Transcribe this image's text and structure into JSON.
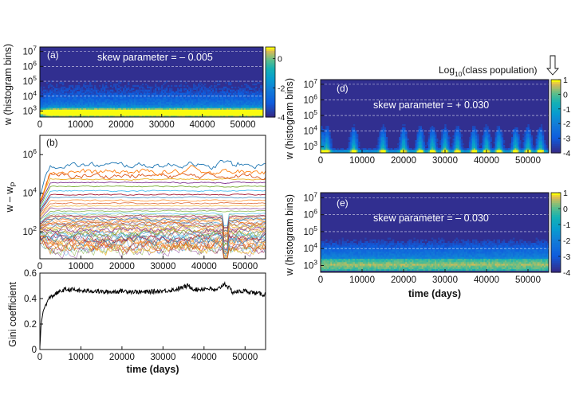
{
  "chart_data": [
    {
      "id": "a",
      "type": "heatmap",
      "panel_label": "(a)",
      "annotation": "skew parameter = – 0.005",
      "ylabel": "w (histogram bins)",
      "xlabel": "",
      "x_ticks": [
        "0",
        "10000",
        "20000",
        "30000",
        "40000",
        "50000"
      ],
      "x_tick_values": [
        0,
        10000,
        20000,
        30000,
        40000,
        50000
      ],
      "xlim": [
        0,
        55000
      ],
      "y_ticks": [
        {
          "base": "10",
          "exp": "3",
          "value": 3
        },
        {
          "base": "10",
          "exp": "4",
          "value": 4
        },
        {
          "base": "10",
          "exp": "5",
          "value": 5
        },
        {
          "base": "10",
          "exp": "6",
          "value": 6
        },
        {
          "base": "10",
          "exp": "7",
          "value": 7
        }
      ],
      "ylim_log10": [
        2.6,
        7.3
      ],
      "colorbar_ticks": [
        "0",
        "-2",
        "-4"
      ],
      "colorbar_tick_values": [
        0,
        -2,
        -4
      ],
      "colorbar_range": [
        -4,
        0.8
      ],
      "population_max_log10w": 5.6,
      "dense_band_log10w": 3.1
    },
    {
      "id": "b",
      "type": "line",
      "panel_label": "(b)",
      "ylabel_main": "w – w",
      "ylabel_sub": "P",
      "xlabel": "",
      "x_ticks": [
        "0",
        "10000",
        "20000",
        "30000",
        "40000",
        "50000"
      ],
      "x_tick_values": [
        0,
        10000,
        20000,
        30000,
        40000,
        50000
      ],
      "xlim": [
        0,
        55000
      ],
      "y_ticks": [
        {
          "base": "10",
          "exp": "2",
          "value": 2
        },
        {
          "base": "10",
          "exp": "4",
          "value": 4
        },
        {
          "base": "10",
          "exp": "6",
          "value": 6
        }
      ],
      "ylim_log10": [
        0.6,
        7.0
      ],
      "series_levels_log10": [
        5.45,
        5.1,
        4.9,
        4.72,
        4.55,
        4.35,
        4.12,
        3.92,
        3.78,
        3.62,
        3.48,
        3.34,
        3.2,
        3.07,
        2.94,
        2.8,
        2.66,
        2.52,
        2.38,
        2.24,
        2.1,
        1.96,
        1.82,
        1.68,
        1.54,
        1.4,
        1.28,
        1.16
      ],
      "series_colors": [
        "#1f77b4",
        "#ff7f0e",
        "#d9541a",
        "#edb120",
        "#7e2f8e",
        "#77ac30",
        "#4dbeee",
        "#a2142f"
      ]
    },
    {
      "id": "c",
      "type": "line",
      "ylabel": "Gini coefficient",
      "xlabel": "time (days)",
      "x_ticks": [
        "0",
        "10000",
        "20000",
        "30000",
        "40000",
        "50000"
      ],
      "x_tick_values": [
        0,
        10000,
        20000,
        30000,
        40000,
        50000
      ],
      "xlim": [
        0,
        55000
      ],
      "y_ticks": [
        "0",
        "0.2",
        "0.4",
        "0.6"
      ],
      "y_tick_values": [
        0,
        0.2,
        0.4,
        0.6
      ],
      "ylim": [
        0,
        0.6
      ],
      "series": [
        {
          "name": "Gini",
          "x": [
            0,
            300,
            800,
            1500,
            2500,
            4000,
            6000,
            8000,
            10000,
            13000,
            16000,
            20000,
            25000,
            30000,
            33000,
            36000,
            38000,
            41000,
            43000,
            45000,
            47000,
            50000,
            53000,
            55000
          ],
          "y": [
            0.02,
            0.2,
            0.3,
            0.36,
            0.41,
            0.44,
            0.47,
            0.47,
            0.46,
            0.46,
            0.45,
            0.46,
            0.45,
            0.46,
            0.47,
            0.5,
            0.47,
            0.48,
            0.46,
            0.52,
            0.45,
            0.46,
            0.44,
            0.43
          ]
        }
      ]
    },
    {
      "id": "d",
      "type": "heatmap",
      "panel_label": "(d)",
      "annotation": "skew parameter = + 0.030",
      "ylabel": "w (histogram bins)",
      "xlabel": "",
      "x_ticks": [
        "0",
        "10000",
        "20000",
        "30000",
        "40000",
        "50000"
      ],
      "x_tick_values": [
        0,
        10000,
        20000,
        30000,
        40000,
        50000
      ],
      "xlim": [
        0,
        55000
      ],
      "y_ticks": [
        {
          "base": "10",
          "exp": "3",
          "value": 3
        },
        {
          "base": "10",
          "exp": "4",
          "value": 4
        },
        {
          "base": "10",
          "exp": "5",
          "value": 5
        },
        {
          "base": "10",
          "exp": "6",
          "value": 6
        },
        {
          "base": "10",
          "exp": "7",
          "value": 7
        }
      ],
      "ylim_log10": [
        2.6,
        7.3
      ],
      "colorbar_ticks": [
        "1",
        "0",
        "-1",
        "-2",
        "-3",
        "-4"
      ],
      "colorbar_tick_values": [
        1,
        0,
        -1,
        -2,
        -3,
        -4
      ],
      "colorbar_range": [
        -4,
        1
      ],
      "colorbar_title": "Log",
      "colorbar_title_sub": "10",
      "colorbar_title_tail": "(class population)",
      "burst_days": [
        1500,
        8000,
        15000,
        20000,
        24000,
        27000,
        30000,
        33000,
        37000,
        40000,
        43000,
        47000,
        50000,
        53000
      ]
    },
    {
      "id": "e",
      "type": "heatmap",
      "panel_label": "(e)",
      "annotation": "skew parameter = – 0.030",
      "ylabel": "w (histogram bins)",
      "xlabel": "time (days)",
      "x_ticks": [
        "0",
        "10000",
        "20000",
        "30000",
        "40000",
        "50000"
      ],
      "x_tick_values": [
        0,
        10000,
        20000,
        30000,
        40000,
        50000
      ],
      "xlim": [
        0,
        55000
      ],
      "y_ticks": [
        {
          "base": "10",
          "exp": "3",
          "value": 3
        },
        {
          "base": "10",
          "exp": "4",
          "value": 4
        },
        {
          "base": "10",
          "exp": "5",
          "value": 5
        },
        {
          "base": "10",
          "exp": "6",
          "value": 6
        },
        {
          "base": "10",
          "exp": "7",
          "value": 7
        }
      ],
      "ylim_log10": [
        2.6,
        7.3
      ],
      "colorbar_ticks": [
        "1",
        "0",
        "-1",
        "-2",
        "-3",
        "-4"
      ],
      "colorbar_tick_values": [
        1,
        0,
        -1,
        -2,
        -3,
        -4
      ],
      "colorbar_range": [
        -4,
        1
      ],
      "dense_band_log10w": [
        2.7,
        3.4
      ]
    }
  ],
  "colors": {
    "viridis_low": "#352a87",
    "viridis_mid": "#1fa5b5",
    "viridis_high": "#f9fb0e",
    "gini_line": "#000000",
    "axis": "#111111"
  }
}
